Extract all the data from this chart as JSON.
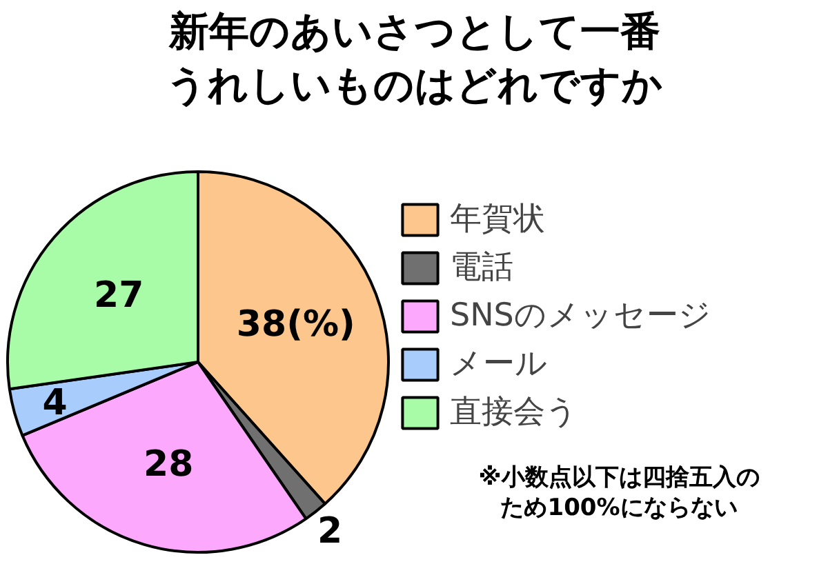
{
  "chart_data": {
    "type": "pie",
    "title": "新年のあいさつとして一番うれしいものはどれですか",
    "categories": [
      "年賀状",
      "電話",
      "SNSのメッセージ",
      "メール",
      "直接会う"
    ],
    "values": [
      38,
      2,
      28,
      4,
      27
    ],
    "colors": [
      "#fcc68c",
      "#707070",
      "#fca8fc",
      "#a8ccfc",
      "#a8fca8"
    ],
    "value_labels": [
      "38(%)",
      "2",
      "28",
      "4",
      "27"
    ],
    "legend": "right",
    "annotations": [
      "※小数点以下は四捨五入のため100%にならない"
    ]
  }
}
